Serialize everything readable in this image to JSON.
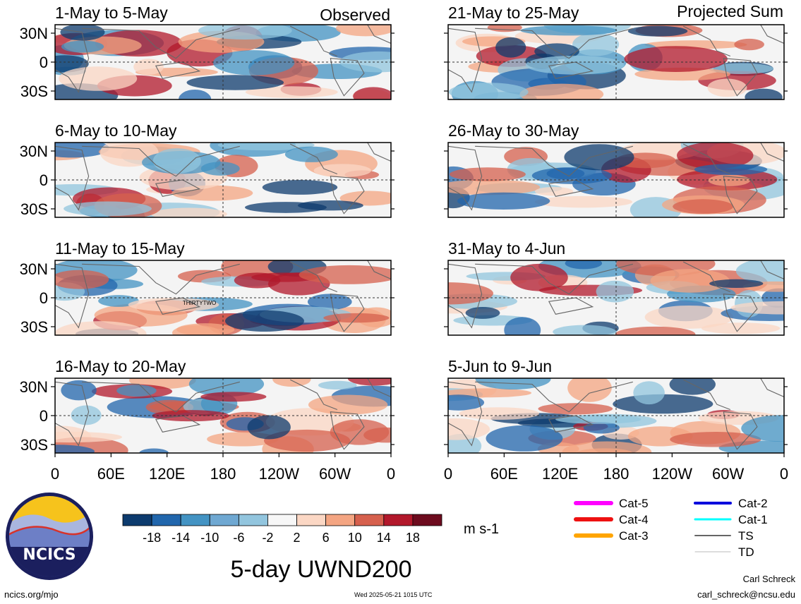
{
  "title": "5-day UWND200",
  "labels": {
    "observed": "Observed",
    "projected": "Projected Sum"
  },
  "panels": [
    {
      "period": "1-May to 5-May",
      "group": "observed"
    },
    {
      "period": "6-May to 10-May",
      "group": "observed"
    },
    {
      "period": "11-May to 15-May",
      "group": "observed",
      "annotation": "THIRTYTWO"
    },
    {
      "period": "16-May to 20-May",
      "group": "observed"
    },
    {
      "period": "21-May to 25-May",
      "group": "projected"
    },
    {
      "period": "26-May to 30-May",
      "group": "projected"
    },
    {
      "period": "31-May to 4-Jun",
      "group": "projected"
    },
    {
      "period": "5-Jun to 9-Jun",
      "group": "projected"
    }
  ],
  "lat_ticks": [
    "30N",
    "0",
    "30S"
  ],
  "lon_ticks": [
    "0",
    "60E",
    "120E",
    "180",
    "120W",
    "60W",
    "0"
  ],
  "colorbar": {
    "unit": "m s-1",
    "tick_labels": [
      "-18",
      "-14",
      "-10",
      "-6",
      "-2",
      "2",
      "6",
      "10",
      "14",
      "18"
    ],
    "colors": [
      "#0d3b6e",
      "#2166ac",
      "#4393c3",
      "#6fa8d2",
      "#92c5de",
      "#f7f7f7",
      "#fbd7c4",
      "#f4a582",
      "#d6604d",
      "#b2182b",
      "#6d0b1e"
    ]
  },
  "legend": [
    {
      "label": "Cat-5",
      "color": "#ff00ff",
      "width": 6
    },
    {
      "label": "Cat-4",
      "color": "#ee1111",
      "width": 6
    },
    {
      "label": "Cat-3",
      "color": "#ffa500",
      "width": 6
    },
    {
      "label": "Cat-2",
      "color": "#0000dd",
      "width": 4
    },
    {
      "label": "Cat-1",
      "color": "#00ffff",
      "width": 3
    },
    {
      "label": "TS",
      "color": "#666666",
      "width": 2
    },
    {
      "label": "TD",
      "color": "#bbbbbb",
      "width": 1
    }
  ],
  "logo_text": "NCICS",
  "footer": {
    "url": "ncics.org/mjo",
    "timestamp": "Wed 2025-05-21 1015 UTC",
    "author": "Carl Schreck",
    "email": "carl_schreck@ncsu.edu"
  }
}
